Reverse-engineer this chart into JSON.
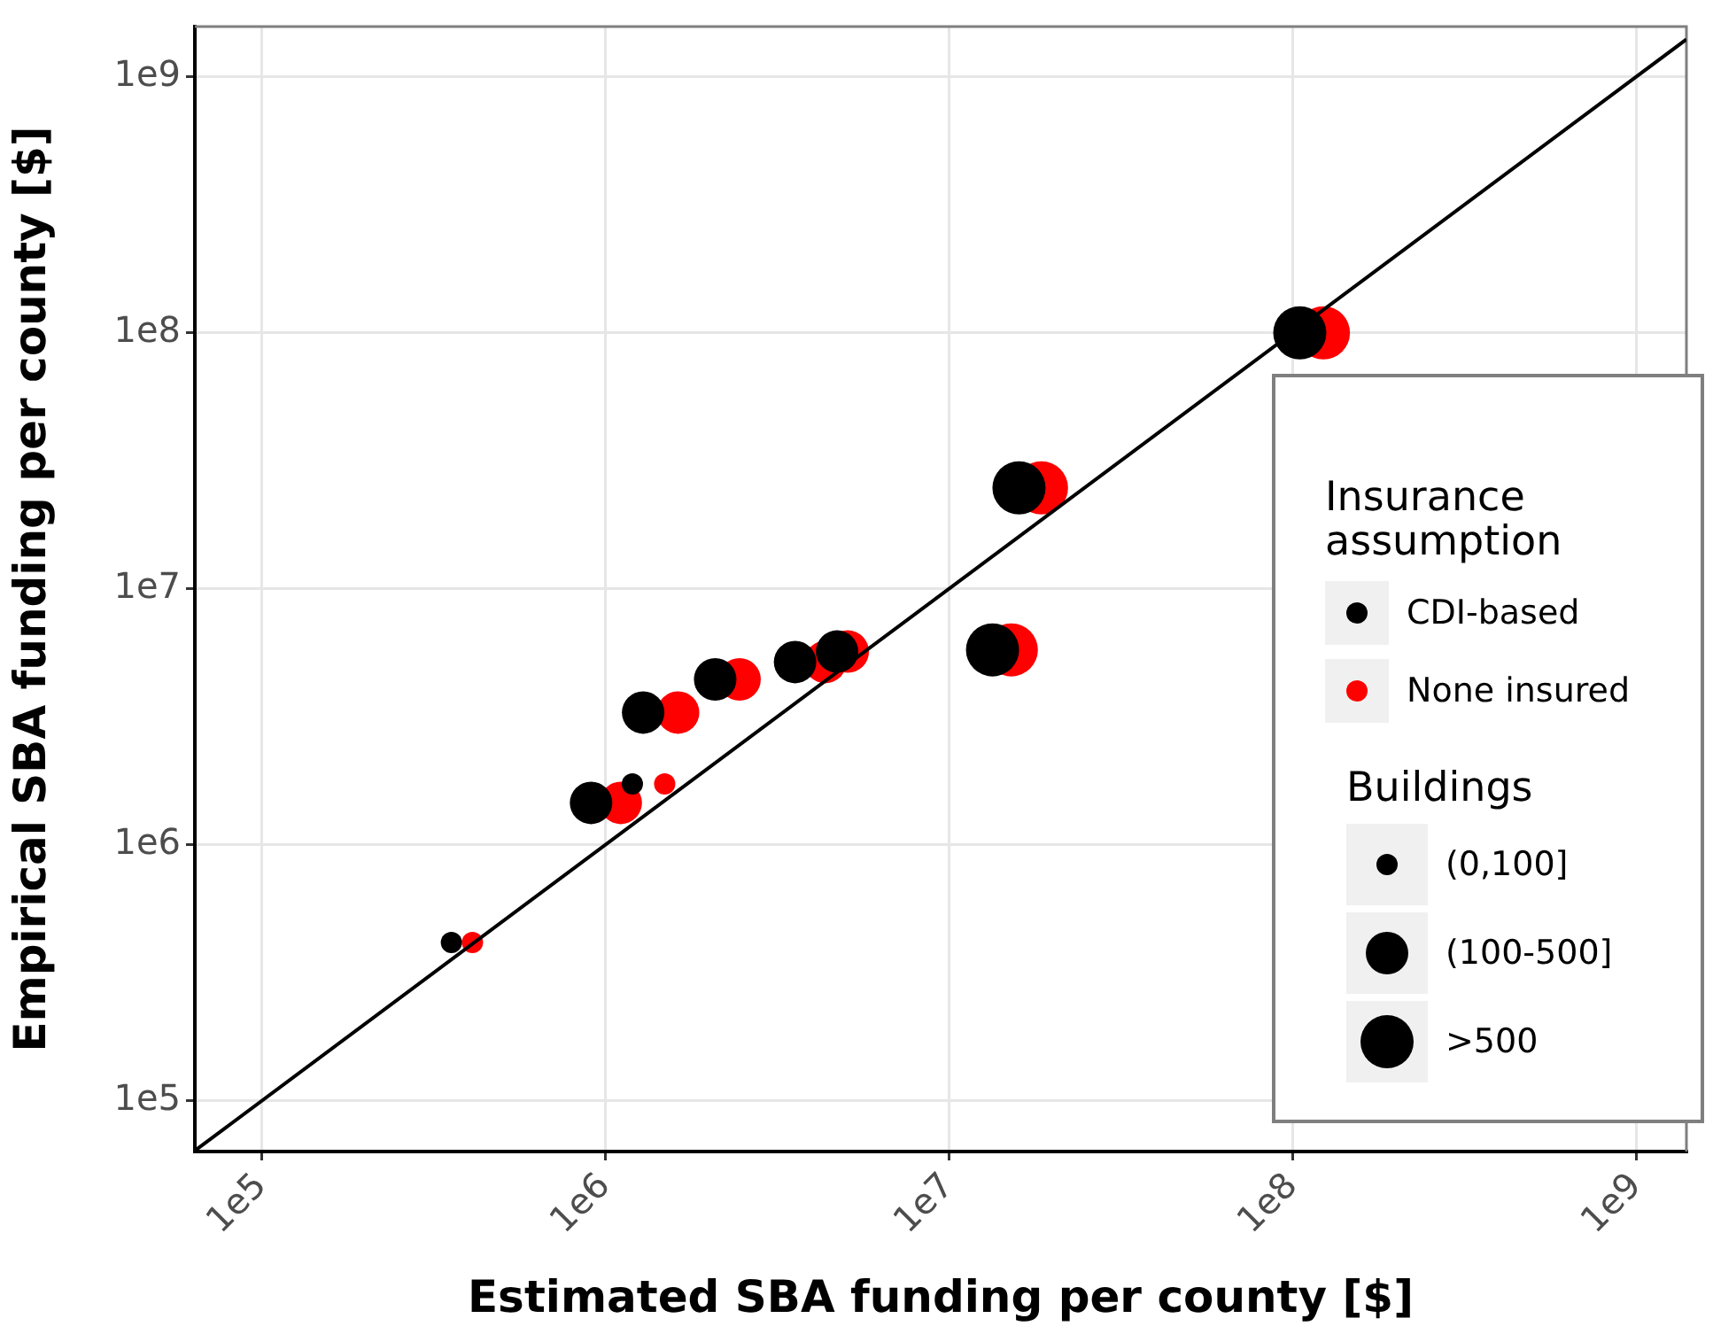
{
  "chart_data": {
    "type": "bubble",
    "xlabel": "Estimated SBA funding per county [$]",
    "ylabel": "Empirical SBA funding per county [$]",
    "legend_title": "Insurance assumption",
    "annotations": [
      "Buildings"
    ],
    "size_legend": [
      {
        "value": 0.16,
        "label": "(0,100]"
      },
      {
        "value": 0.64,
        "label": "(100-500]"
      },
      {
        "value": 1,
        "label": ">500"
      }
    ],
    "log": "xy",
    "xlim": [
      64000,
      1400000000
    ],
    "ylim": [
      63500,
      1570000000
    ],
    "xticks": [
      {
        "value": 100000,
        "label": "1e5"
      },
      {
        "value": 1000000,
        "label": "1e6"
      },
      {
        "value": 10000000,
        "label": "1e7"
      },
      {
        "value": 100000000,
        "label": "1e8"
      },
      {
        "value": 1000000000,
        "label": "1e9"
      }
    ],
    "yticks": [
      {
        "value": 100000,
        "label": "1e5"
      },
      {
        "value": 1000000,
        "label": "1e6"
      },
      {
        "value": 10000000,
        "label": "1e7"
      },
      {
        "value": 100000000,
        "label": "1e8"
      },
      {
        "value": 1000000000,
        "label": "1e9"
      }
    ],
    "grid": true,
    "legend": "right",
    "marker": "circle",
    "series": [
      {
        "type": "line",
        "color": "#000000",
        "marker": "none",
        "line_style": "solid",
        "x": [
          64000,
          1400000000
        ],
        "values": [
          64000,
          1400000000
        ]
      },
      {
        "name": "CDI-based",
        "color": "#000000",
        "x": [
          357000,
          910000,
          1200000,
          1290000,
          2090000,
          3570000,
          4730000,
          13400000,
          16000000,
          105000000
        ],
        "values": [
          416000,
          1460000,
          1730000,
          3290000,
          4430000,
          5180000,
          5690000,
          5780000,
          24800000,
          100000000
        ],
        "sizes": [
          0.16,
          0.64,
          0.16,
          0.64,
          0.64,
          0.64,
          0.64,
          1,
          1,
          1
        ]
      },
      {
        "name": "None insured",
        "color": "#ff0000",
        "x": [
          411000,
          1110000,
          1490000,
          1630000,
          2460000,
          4370000,
          5080000,
          15200000,
          18600000,
          123000000
        ],
        "values": [
          416000,
          1460000,
          1730000,
          3290000,
          4430000,
          5180000,
          5690000,
          5780000,
          24800000,
          100000000
        ],
        "sizes": [
          0.16,
          0.64,
          0.16,
          0.64,
          0.64,
          0.64,
          0.64,
          1,
          1,
          1
        ]
      }
    ]
  }
}
